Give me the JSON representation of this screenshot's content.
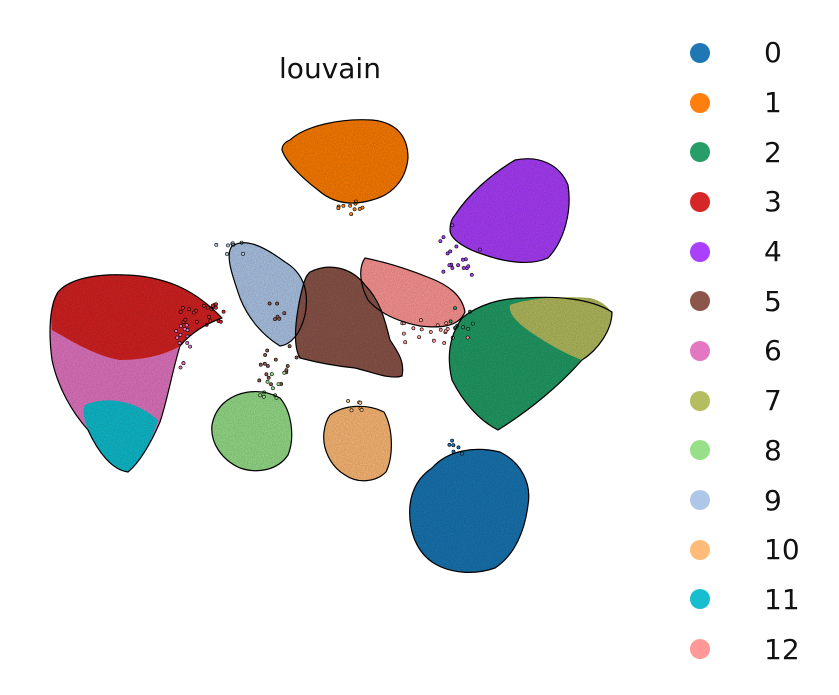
{
  "chart_data": {
    "type": "scatter",
    "title": "louvain",
    "xlabel": "",
    "ylabel": "",
    "grid": false,
    "axes_visible": false,
    "legend_placement": "right",
    "clusters": [
      {
        "name": "0",
        "color": "#1f77b4"
      },
      {
        "name": "1",
        "color": "#ff7f0e"
      },
      {
        "name": "2",
        "color": "#279e68"
      },
      {
        "name": "3",
        "color": "#d62728"
      },
      {
        "name": "4",
        "color": "#aa40fc"
      },
      {
        "name": "5",
        "color": "#8c564b"
      },
      {
        "name": "6",
        "color": "#e377c2"
      },
      {
        "name": "7",
        "color": "#b5bd61"
      },
      {
        "name": "8",
        "color": "#98df8a"
      },
      {
        "name": "9",
        "color": "#aec7e8"
      },
      {
        "name": "10",
        "color": "#ffbb78"
      },
      {
        "name": "11",
        "color": "#17becf"
      },
      {
        "name": "12",
        "color": "#ff9896"
      }
    ]
  }
}
